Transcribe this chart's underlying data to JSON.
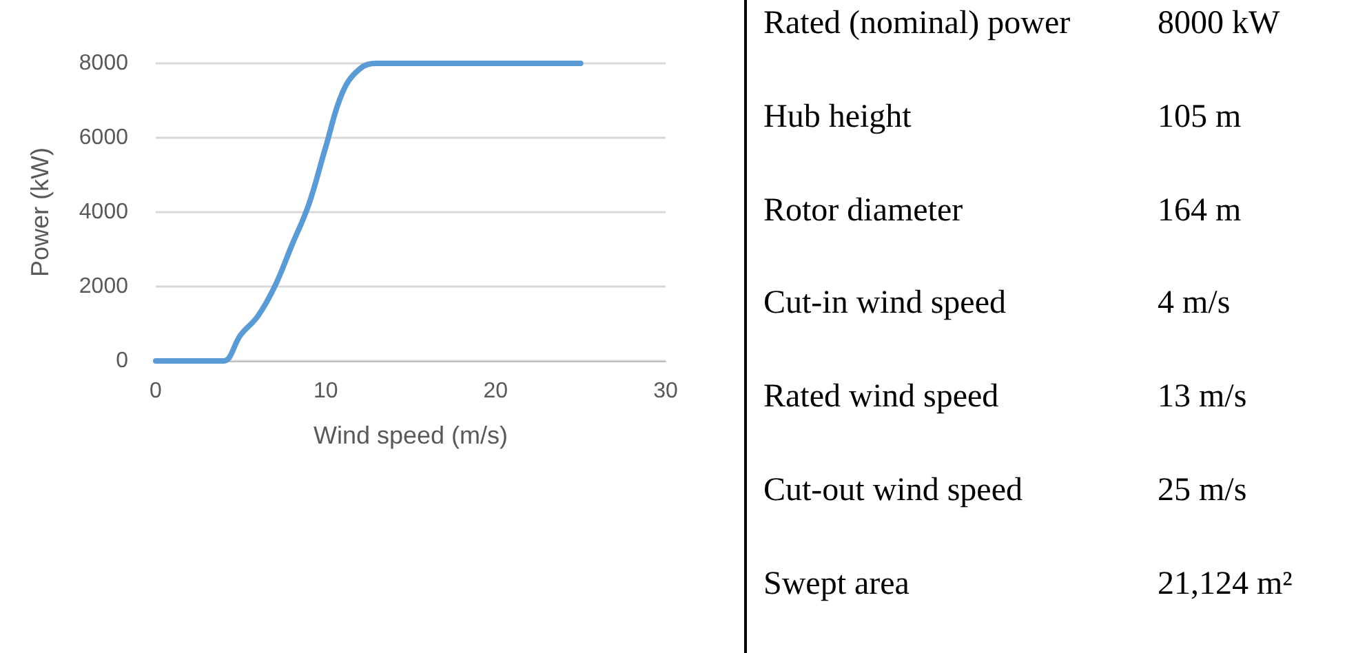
{
  "chart_data": [
    {
      "type": "line",
      "xlabel": "Wind speed (m/s)",
      "ylabel": "Power (kW)",
      "x": [
        0,
        3.5,
        4,
        5,
        6,
        7,
        8,
        9,
        10,
        11,
        12,
        13,
        25
      ],
      "series": [
        {
          "color": "#5b9bd5",
          "values": [
            0,
            0,
            0,
            700,
            1200,
            2000,
            3100,
            4200,
            5750,
            7230,
            7850,
            8000,
            8000
          ]
        }
      ],
      "xlim": [
        0,
        30
      ],
      "xticks": [
        0,
        10,
        20,
        30
      ],
      "ylim": [
        0,
        8000
      ],
      "yticks": [
        0,
        2000,
        4000,
        6000,
        8000
      ],
      "grid": "y",
      "marker": "none",
      "line_style": "solid"
    },
    {
      "type": "other",
      "annotations": [
        "Rated (nominal) power",
        "8000 kW",
        "Hub height",
        "105 m",
        "Rotor diameter",
        "164 m",
        "Cut-in wind speed",
        "4 m/s",
        "Rated wind speed",
        "13 m/s",
        "Cut-out wind speed",
        "25 m/s",
        "Swept area",
        "21,124 m²"
      ]
    }
  ]
}
